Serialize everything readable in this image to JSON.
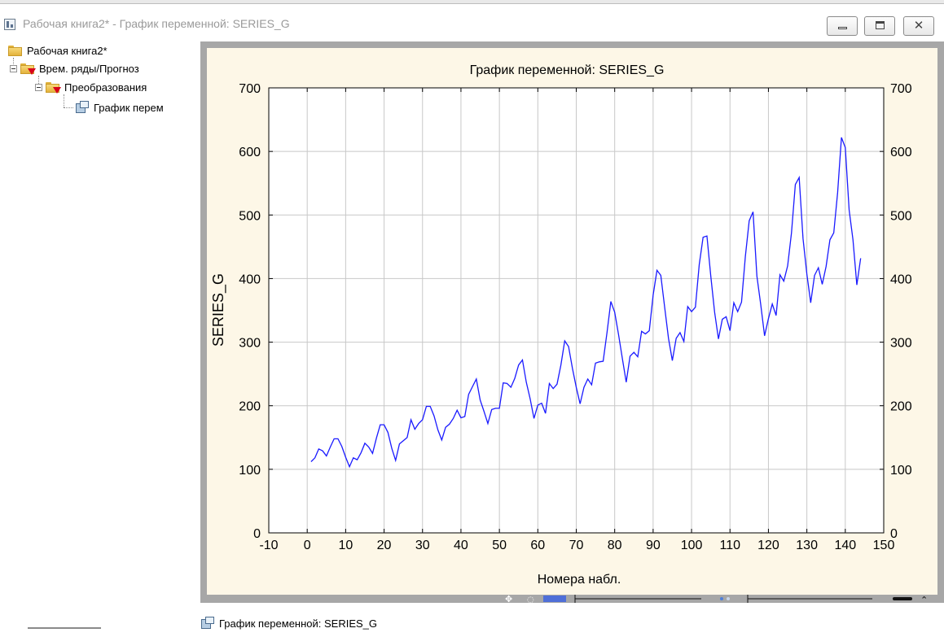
{
  "window": {
    "title": "Рабочая книга2* - График переменной: SERIES_G"
  },
  "tree": {
    "root": "Рабочая книга2*",
    "level1": "Врем. ряды/Прогноз",
    "level2": "Преобразования",
    "level3": "График перем"
  },
  "bottom_tab": {
    "label": "График переменной: SERIES_G"
  },
  "icons": [
    "app-icon",
    "minimize-icon",
    "maximize-icon",
    "close-icon",
    "folder-icon",
    "graph-doc-icon"
  ],
  "colors": {
    "plot_bg": "#ffffff",
    "frame_bg": "#fdf7e7",
    "series": "#1a1aff",
    "panel_border": "#a7a7a7"
  },
  "chart_data": {
    "type": "line",
    "title": "График переменной: SERIES_G",
    "xlabel": "Номера набл.",
    "ylabel": "SERIES_G",
    "xlim": [
      -10,
      150
    ],
    "ylim": [
      0,
      700
    ],
    "xticks": [
      "-10",
      "0",
      "10",
      "20",
      "30",
      "40",
      "50",
      "60",
      "70",
      "80",
      "90",
      "100",
      "110",
      "120",
      "130",
      "140",
      "150"
    ],
    "yticks": [
      "0",
      "100",
      "200",
      "300",
      "400",
      "500",
      "600",
      "700"
    ],
    "grid": true,
    "right_axis": true,
    "series": [
      {
        "x": [
          1,
          2,
          3,
          4,
          5,
          6,
          7,
          8,
          9,
          10,
          11,
          12,
          13,
          14,
          15,
          16,
          17,
          18,
          19,
          20,
          21,
          22,
          23,
          24,
          25,
          26,
          27,
          28,
          29,
          30,
          31,
          32,
          33,
          34,
          35,
          36,
          37,
          38,
          39,
          40,
          41,
          42,
          43,
          44,
          45,
          46,
          47,
          48,
          49,
          50,
          51,
          52,
          53,
          54,
          55,
          56,
          57,
          58,
          59,
          60,
          61,
          62,
          63,
          64,
          65,
          66,
          67,
          68,
          69,
          70,
          71,
          72,
          73,
          74,
          75,
          76,
          77,
          78,
          79,
          80,
          81,
          82,
          83,
          84,
          85,
          86,
          87,
          88,
          89,
          90,
          91,
          92,
          93,
          94,
          95,
          96,
          97,
          98,
          99,
          100,
          101,
          102,
          103,
          104,
          105,
          106,
          107,
          108,
          109,
          110,
          111,
          112,
          113,
          114,
          115,
          116,
          117,
          118,
          119,
          120,
          121,
          122,
          123,
          124,
          125,
          126,
          127,
          128,
          129,
          130,
          131,
          132,
          133,
          134,
          135,
          136,
          137,
          138,
          139,
          140,
          141,
          142,
          143,
          144
        ],
        "values": [
          112,
          118,
          132,
          129,
          121,
          135,
          148,
          148,
          136,
          119,
          104,
          118,
          115,
          126,
          141,
          135,
          125,
          149,
          170,
          170,
          158,
          133,
          114,
          140,
          145,
          150,
          178,
          163,
          172,
          178,
          199,
          199,
          184,
          162,
          146,
          166,
          171,
          180,
          193,
          181,
          183,
          218,
          230,
          242,
          209,
          191,
          172,
          194,
          196,
          196,
          236,
          235,
          229,
          243,
          264,
          272,
          237,
          211,
          180,
          201,
          204,
          188,
          235,
          227,
          234,
          264,
          302,
          293,
          259,
          229,
          203,
          229,
          242,
          233,
          267,
          269,
          270,
          315,
          364,
          347,
          312,
          274,
          237,
          278,
          284,
          277,
          317,
          313,
          318,
          374,
          413,
          405,
          355,
          306,
          271,
          306,
          315,
          301,
          356,
          348,
          355,
          422,
          465,
          467,
          404,
          347,
          305,
          336,
          340,
          318,
          362,
          348,
          363,
          435,
          491,
          505,
          404,
          359,
          310,
          337,
          360,
          342,
          406,
          396,
          420,
          472,
          548,
          559,
          463,
          407,
          362,
          405,
          417,
          391,
          419,
          461,
          472,
          535,
          622,
          606,
          508,
          461,
          390,
          432
        ]
      }
    ]
  }
}
